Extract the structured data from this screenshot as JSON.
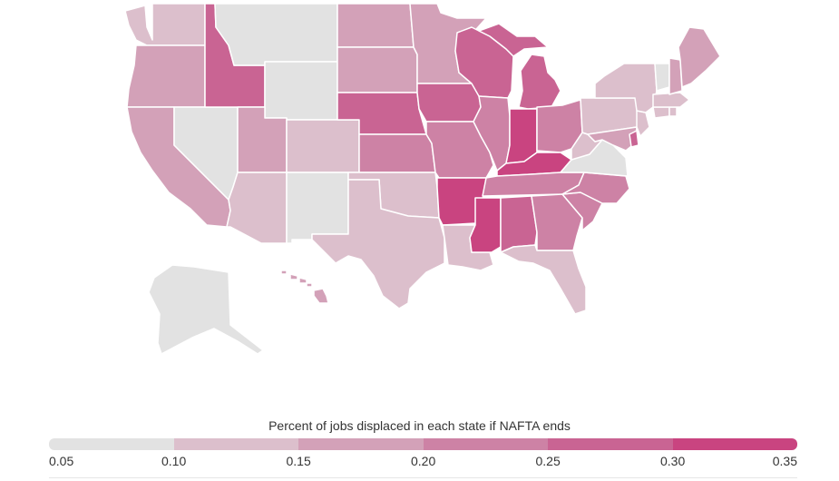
{
  "legend": {
    "title": "Percent of jobs displaced in each state if NAFTA ends",
    "ticks": [
      "0.05",
      "0.10",
      "0.15",
      "0.20",
      "0.25",
      "0.30",
      "0.35"
    ],
    "colors": [
      "#e2e2e2",
      "#dcbfcc",
      "#d3a1b8",
      "#cd82a5",
      "#c96493",
      "#c94480"
    ]
  },
  "map_data": {
    "measure": "Percent of jobs displaced in each state if NAFTA ends",
    "bins": [
      {
        "range": [
          0.05,
          0.1
        ],
        "color": "#e2e2e2"
      },
      {
        "range": [
          0.1,
          0.15
        ],
        "color": "#dcbfcc"
      },
      {
        "range": [
          0.15,
          0.2
        ],
        "color": "#d3a1b8"
      },
      {
        "range": [
          0.2,
          0.25
        ],
        "color": "#cd82a5"
      },
      {
        "range": [
          0.25,
          0.3
        ],
        "color": "#c96493"
      },
      {
        "range": [
          0.3,
          0.35
        ],
        "color": "#c94480"
      }
    ],
    "states": {
      "WA": 1,
      "OR": 2,
      "CA": 2,
      "NV": 0,
      "ID": 4,
      "MT": 0,
      "WY": 0,
      "UT": 2,
      "AZ": 1,
      "CO": 1,
      "NM": 0,
      "ND": 2,
      "SD": 2,
      "NE": 4,
      "KS": 3,
      "OK": 1,
      "TX": 1,
      "MN": 2,
      "IA": 4,
      "MO": 3,
      "AR": 5,
      "LA": 1,
      "WI": 4,
      "IL": 3,
      "MI": 4,
      "IN": 5,
      "OH": 3,
      "KY": 5,
      "TN": 3,
      "MS": 5,
      "AL": 4,
      "GA": 3,
      "FL": 1,
      "SC": 3,
      "NC": 3,
      "VA": 0,
      "WV": 1,
      "MD": 2,
      "DE": 4,
      "PA": 1,
      "NJ": 1,
      "NY": 1,
      "CT": 1,
      "RI": 1,
      "MA": 1,
      "VT": 0,
      "NH": 2,
      "ME": 2,
      "AK": 0,
      "HI": 2
    }
  }
}
